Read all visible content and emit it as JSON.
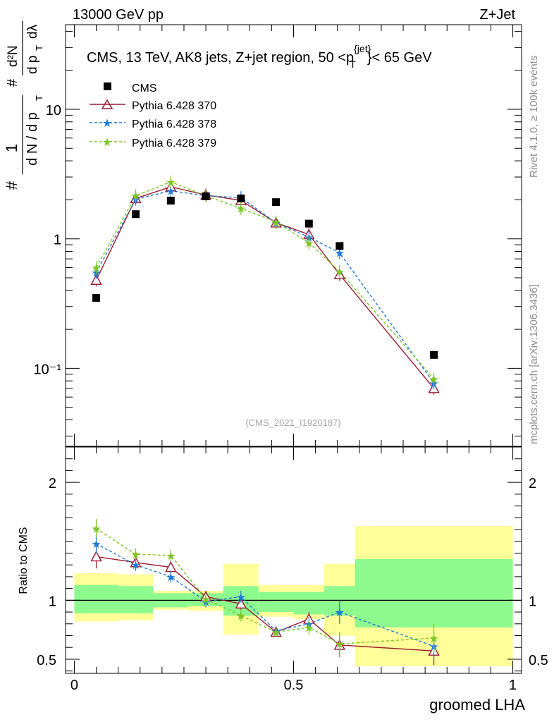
{
  "header": {
    "energy_label": "13000 GeV pp",
    "process_label": "Z+Jet"
  },
  "side_labels": {
    "rivet": "Rivet 4.1.0, ≥ 100k events",
    "mcplots": "mcplots.cern.ch [arXiv:1306.3436]"
  },
  "colors": {
    "cms": "#000000",
    "p370": "#9b1b30",
    "p378": "#1e7ad8",
    "p379": "#7cc623",
    "band_stat": "#8ef98e",
    "band_tot": "#ffff99"
  },
  "chart_data": [
    {
      "type": "scatter",
      "panel": "main",
      "title": "CMS, 13 TeV, AK8 jets, Z+jet region, 50 <p_T^{jet}< 65 GeV",
      "title_parts": {
        "pre": "CMS, 13 TeV, AK8 jets, Z+jet region, 50 <p",
        "sup": "{jet}",
        "sub": "T",
        "post": "}< 65 GeV"
      },
      "ylabel": "1/(dN/dp_T) d^2N/(dp_T dλ)",
      "ylabel_parts": {
        "hash": "#",
        "one": "1",
        "dN": "d N / d p",
        "T": "T",
        "hash2": "#",
        "d2N": "d²N",
        "dpt": "d p",
        "T2": "T",
        "dl": "dλ"
      },
      "yscale": "log",
      "ylim": [
        0.025,
        45
      ],
      "yticks": [
        {
          "value": 0.1,
          "label": "10⁻¹"
        },
        {
          "value": 1,
          "label": "1"
        },
        {
          "value": 10,
          "label": "10"
        }
      ],
      "watermark": "(CMS_2021_I1920187)",
      "legend": [
        "CMS",
        "Pythia 6.428 370",
        "Pythia 6.428 378",
        "Pythia 6.428 379"
      ],
      "series": [
        {
          "name": "CMS",
          "x": [
            0.05,
            0.14,
            0.22,
            0.3,
            0.38,
            0.46,
            0.535,
            0.605,
            0.82
          ],
          "y": [
            0.35,
            1.55,
            1.97,
            2.13,
            2.05,
            1.92,
            1.31,
            0.88,
            0.127
          ]
        },
        {
          "name": "Pythia 6.428 370",
          "x": [
            0.05,
            0.14,
            0.22,
            0.3,
            0.38,
            0.46,
            0.535,
            0.605,
            0.82
          ],
          "y": [
            0.48,
            2.05,
            2.52,
            2.18,
            1.98,
            1.33,
            1.08,
            0.53,
            0.07
          ]
        },
        {
          "name": "Pythia 6.428 378",
          "x": [
            0.05,
            0.14,
            0.22,
            0.3,
            0.38,
            0.46,
            0.535,
            0.605,
            0.82
          ],
          "y": [
            0.55,
            2.02,
            2.35,
            2.15,
            2.08,
            1.33,
            1.03,
            0.78,
            0.077
          ]
        },
        {
          "name": "Pythia 6.428 379",
          "x": [
            0.05,
            0.14,
            0.22,
            0.3,
            0.38,
            0.46,
            0.535,
            0.605,
            0.82
          ],
          "y": [
            0.6,
            2.15,
            2.75,
            2.15,
            1.72,
            1.35,
            0.93,
            0.56,
            0.083
          ]
        }
      ]
    },
    {
      "type": "line",
      "panel": "ratio",
      "ylabel": "Ratio to CMS",
      "xlabel": "groomed LHA",
      "xlim": [
        -0.02,
        1.02
      ],
      "ylim": [
        0.38,
        2.3
      ],
      "xticks": [
        {
          "value": 0,
          "label": "0"
        },
        {
          "value": 0.5,
          "label": "0.5"
        },
        {
          "value": 1,
          "label": "1"
        }
      ],
      "yticks": [
        {
          "value": 0.5,
          "label": "0.5"
        },
        {
          "value": 1,
          "label": "1"
        },
        {
          "value": 2,
          "label": "2"
        }
      ],
      "bins": [
        {
          "lo": 0.0,
          "hi": 0.1,
          "stat": [
            0.89,
            1.13
          ],
          "total": [
            0.82,
            1.23
          ]
        },
        {
          "lo": 0.1,
          "hi": 0.18,
          "stat": [
            0.89,
            1.12
          ],
          "total": [
            0.83,
            1.22
          ]
        },
        {
          "lo": 0.18,
          "hi": 0.26,
          "stat": [
            0.94,
            1.06
          ],
          "total": [
            0.92,
            1.08
          ]
        },
        {
          "lo": 0.26,
          "hi": 0.34,
          "stat": [
            0.95,
            1.06
          ],
          "total": [
            0.91,
            1.08
          ]
        },
        {
          "lo": 0.34,
          "hi": 0.42,
          "stat": [
            0.87,
            1.12
          ],
          "total": [
            0.71,
            1.31
          ]
        },
        {
          "lo": 0.42,
          "hi": 0.5,
          "stat": [
            0.9,
            1.07
          ],
          "total": [
            0.86,
            1.13
          ]
        },
        {
          "lo": 0.5,
          "hi": 0.57,
          "stat": [
            0.88,
            1.07
          ],
          "total": [
            0.84,
            1.13
          ]
        },
        {
          "lo": 0.57,
          "hi": 0.64,
          "stat": [
            0.87,
            1.12
          ],
          "total": [
            0.7,
            1.31
          ]
        },
        {
          "lo": 0.64,
          "hi": 1.0,
          "stat": [
            0.77,
            1.35
          ],
          "total": [
            0.44,
            1.63
          ]
        }
      ],
      "series": [
        {
          "name": "Pythia 6.428 370",
          "x": [
            0.05,
            0.14,
            0.22,
            0.3,
            0.38,
            0.46,
            0.535,
            0.605,
            0.82
          ],
          "y": [
            1.37,
            1.32,
            1.28,
            1.03,
            0.97,
            0.73,
            0.84,
            0.62,
            0.57
          ],
          "err": [
            0.1,
            0.05,
            0.05,
            0.05,
            0.05,
            0.04,
            0.06,
            0.1,
            0.12
          ]
        },
        {
          "name": "Pythia 6.428 378",
          "x": [
            0.05,
            0.14,
            0.22,
            0.3,
            0.38,
            0.46,
            0.535,
            0.605,
            0.82
          ],
          "y": [
            1.48,
            1.3,
            1.2,
            0.99,
            1.03,
            0.74,
            0.8,
            0.9,
            0.61
          ],
          "err": [
            0.08,
            0.05,
            0.05,
            0.05,
            0.05,
            0.04,
            0.06,
            0.1,
            0.12
          ]
        },
        {
          "name": "Pythia 6.428 379",
          "x": [
            0.05,
            0.14,
            0.22,
            0.3,
            0.38,
            0.46,
            0.535,
            0.605,
            0.82
          ],
          "y": [
            1.61,
            1.39,
            1.38,
            1.01,
            0.87,
            0.73,
            0.77,
            0.63,
            0.68
          ],
          "err": [
            0.08,
            0.05,
            0.05,
            0.05,
            0.05,
            0.04,
            0.06,
            0.1,
            0.12
          ]
        }
      ]
    }
  ]
}
